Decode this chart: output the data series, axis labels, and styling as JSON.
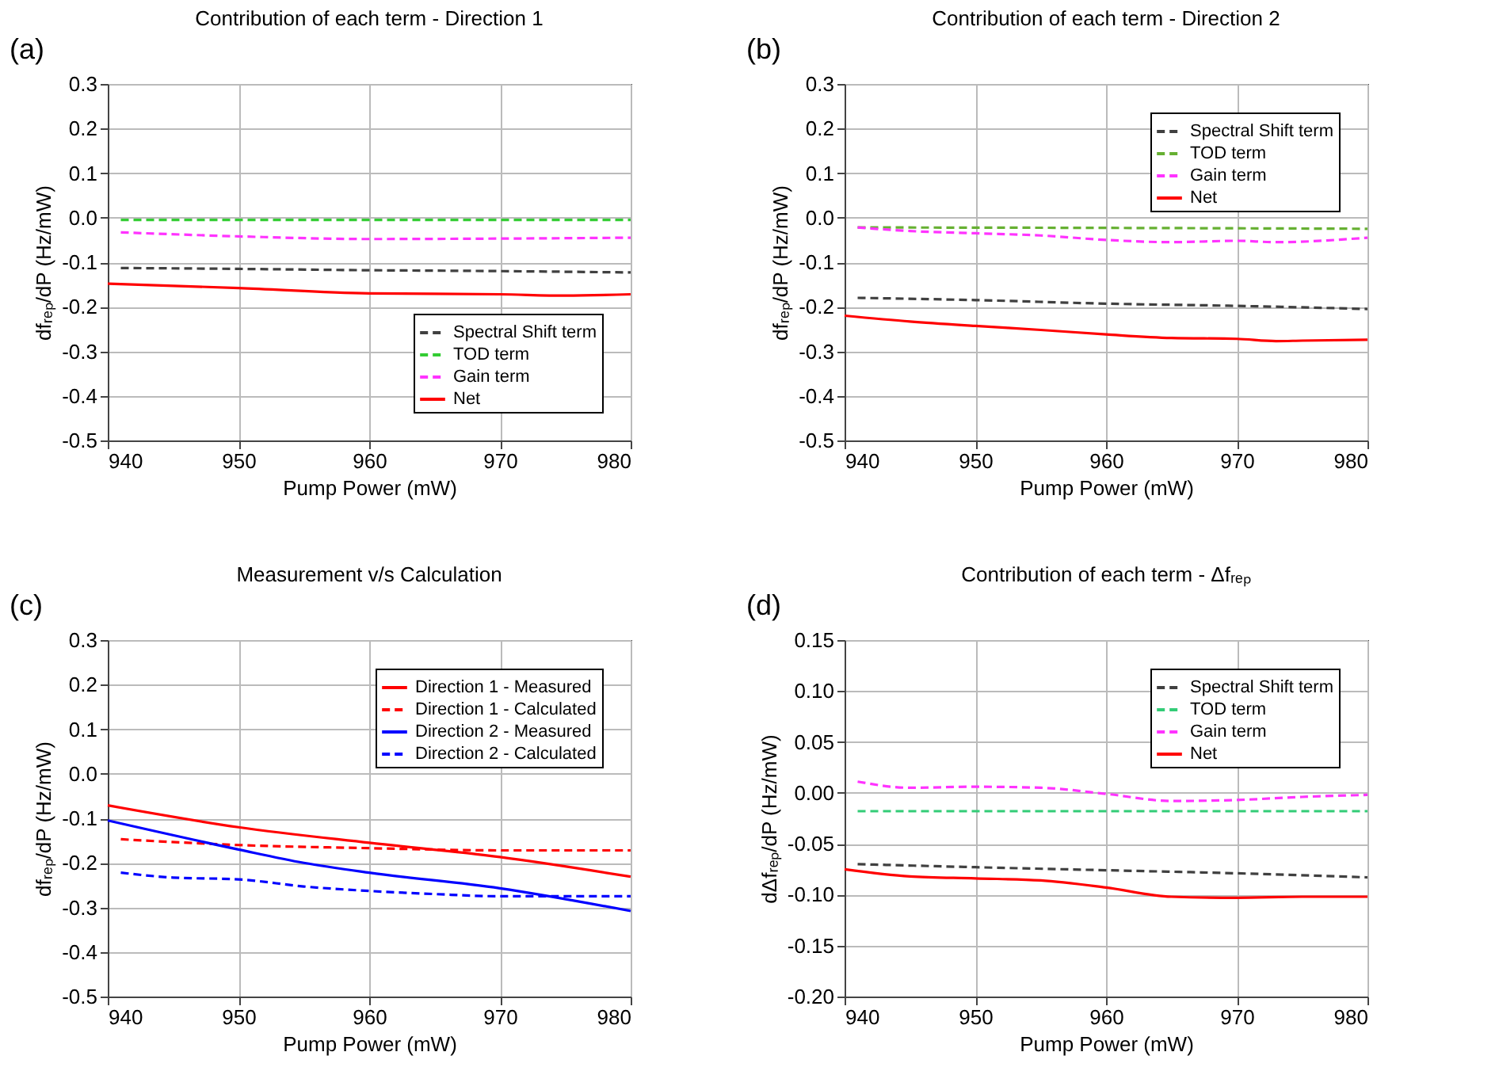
{
  "chart_data": [
    {
      "type": "line",
      "title": "Contribution of each term - Direction 1",
      "xlabel": "Pump Power (mW)",
      "ylabel": "dfᵣₑₚ/dP (Hz/mW)",
      "annotations": [
        "(a)"
      ],
      "xlim": [
        940,
        980
      ],
      "xticks": [
        940,
        950,
        960,
        970,
        980
      ],
      "ylim": [
        -0.5,
        0.3
      ],
      "yticks": [
        {
          "value": -0.5,
          "label": "-0.5"
        },
        {
          "value": -0.4,
          "label": "-0.4"
        },
        {
          "value": -0.3,
          "label": "-0.3"
        },
        {
          "value": -0.2,
          "label": "-0.2"
        },
        {
          "value": -0.1,
          "label": "-0.1"
        },
        {
          "value": 0,
          "label": "0.0"
        },
        {
          "value": 0.1,
          "label": "0.1"
        },
        {
          "value": 0.2,
          "label": "0.2"
        },
        {
          "value": 0.3,
          "label": "0.3"
        }
      ],
      "grid": true,
      "legend": "bottom right",
      "series": [
        {
          "name": "Spectral Shift term",
          "color": "#404040",
          "line_style": "dashed",
          "x": [
            941,
            950,
            960,
            970,
            980
          ],
          "values": [
            -0.113,
            -0.115,
            -0.118,
            -0.12,
            -0.123
          ]
        },
        {
          "name": "TOD term",
          "color": "#33cc33",
          "line_style": "dashed",
          "x": [
            941,
            950,
            960,
            970,
            980
          ],
          "values": [
            -0.005,
            -0.005,
            -0.005,
            -0.005,
            -0.005
          ]
        },
        {
          "name": "Gain term",
          "color": "#ff33ff",
          "line_style": "dashed",
          "x": [
            941,
            950,
            960,
            970,
            980
          ],
          "values": [
            -0.033,
            -0.042,
            -0.048,
            -0.047,
            -0.045
          ]
        },
        {
          "name": "Net",
          "color": "#ff0000",
          "line_style": "solid",
          "x": [
            940,
            950,
            960,
            970,
            975,
            980
          ],
          "values": [
            -0.148,
            -0.158,
            -0.17,
            -0.172,
            -0.175,
            -0.172
          ]
        }
      ]
    },
    {
      "type": "line",
      "title": "Contribution of each term - Direction 2",
      "xlabel": "Pump Power (mW)",
      "ylabel": "dfᵣₑₚ/dP (Hz/mW)",
      "annotations": [
        "(b)"
      ],
      "xlim": [
        940,
        980
      ],
      "xticks": [
        940,
        950,
        960,
        970,
        980
      ],
      "ylim": [
        -0.5,
        0.3
      ],
      "yticks": [
        {
          "value": -0.5,
          "label": "-0.5"
        },
        {
          "value": -0.4,
          "label": "-0.4"
        },
        {
          "value": -0.3,
          "label": "-0.3"
        },
        {
          "value": -0.2,
          "label": "-0.2"
        },
        {
          "value": -0.1,
          "label": "-0.1"
        },
        {
          "value": 0,
          "label": "0.0"
        },
        {
          "value": 0.1,
          "label": "0.1"
        },
        {
          "value": 0.2,
          "label": "0.2"
        },
        {
          "value": 0.3,
          "label": "0.3"
        }
      ],
      "grid": true,
      "legend": "top right",
      "series": [
        {
          "name": "Spectral Shift term",
          "color": "#404040",
          "line_style": "dashed",
          "x": [
            941,
            950,
            960,
            970,
            980
          ],
          "values": [
            -0.18,
            -0.185,
            -0.193,
            -0.198,
            -0.205
          ]
        },
        {
          "name": "TOD term",
          "color": "#66b032",
          "line_style": "dashed",
          "x": [
            941,
            960,
            980
          ],
          "values": [
            -0.022,
            -0.023,
            -0.025
          ]
        },
        {
          "name": "Gain term",
          "color": "#ff33ff",
          "line_style": "dashed",
          "x": [
            941,
            945,
            950,
            955,
            960,
            965,
            970,
            973,
            980
          ],
          "values": [
            -0.022,
            -0.03,
            -0.035,
            -0.04,
            -0.05,
            -0.055,
            -0.052,
            -0.055,
            -0.045
          ]
        },
        {
          "name": "Net",
          "color": "#ff0000",
          "line_style": "solid",
          "x": [
            940,
            945,
            950,
            955,
            960,
            965,
            970,
            973,
            975,
            980
          ],
          "values": [
            -0.22,
            -0.233,
            -0.243,
            -0.252,
            -0.262,
            -0.27,
            -0.272,
            -0.277,
            -0.276,
            -0.274
          ]
        }
      ]
    },
    {
      "type": "line",
      "title": "Measurement v/s Calculation",
      "xlabel": "Pump Power (mW)",
      "ylabel": "dfᵣₑₚ/dP (Hz/mW)",
      "annotations": [
        "(c)"
      ],
      "xlim": [
        940,
        980
      ],
      "xticks": [
        940,
        950,
        960,
        970,
        980
      ],
      "ylim": [
        -0.5,
        0.3
      ],
      "yticks": [
        {
          "value": -0.5,
          "label": "-0.5"
        },
        {
          "value": -0.4,
          "label": "-0.4"
        },
        {
          "value": -0.3,
          "label": "-0.3"
        },
        {
          "value": -0.2,
          "label": "-0.2"
        },
        {
          "value": -0.1,
          "label": "-0.1"
        },
        {
          "value": 0,
          "label": "0.0"
        },
        {
          "value": 0.1,
          "label": "0.1"
        },
        {
          "value": 0.2,
          "label": "0.2"
        },
        {
          "value": 0.3,
          "label": "0.3"
        }
      ],
      "grid": true,
      "legend": "top right",
      "series": [
        {
          "name": "Direction 1 - Measured",
          "color": "#ff0000",
          "line_style": "solid",
          "x": [
            940,
            950,
            960,
            970,
            980
          ],
          "values": [
            -0.071,
            -0.12,
            -0.155,
            -0.187,
            -0.231
          ]
        },
        {
          "name": "Direction 1 - Calculated",
          "color": "#ff0000",
          "line_style": "dashed",
          "x": [
            941,
            950,
            960,
            970,
            980
          ],
          "values": [
            -0.147,
            -0.16,
            -0.167,
            -0.172,
            -0.172
          ]
        },
        {
          "name": "Direction 2 - Measured",
          "color": "#0000ff",
          "line_style": "solid",
          "x": [
            940,
            950,
            955,
            960,
            970,
            980
          ],
          "values": [
            -0.105,
            -0.17,
            -0.2,
            -0.222,
            -0.257,
            -0.308
          ]
        },
        {
          "name": "Direction 2 - Calculated",
          "color": "#0000ff",
          "line_style": "dashed",
          "x": [
            941,
            945,
            950,
            955,
            960,
            965,
            970,
            980
          ],
          "values": [
            -0.222,
            -0.233,
            -0.237,
            -0.253,
            -0.263,
            -0.27,
            -0.275,
            -0.275
          ]
        }
      ]
    },
    {
      "type": "line",
      "title": "Contribution of each term - Δfᵣₑₚ",
      "xlabel": "Pump Power (mW)",
      "ylabel": "dΔfᵣₑₚ/dP (Hz/mW)",
      "annotations": [
        "(d)"
      ],
      "xlim": [
        940,
        980
      ],
      "xticks": [
        940,
        950,
        960,
        970,
        980
      ],
      "ylim": [
        -0.2,
        0.15
      ],
      "yticks": [
        {
          "value": -0.2,
          "label": "-0.20"
        },
        {
          "value": -0.15,
          "label": "-0.15"
        },
        {
          "value": -0.1,
          "label": "-0.10"
        },
        {
          "value": -0.05,
          "label": "-0.05"
        },
        {
          "value": 0,
          "label": "0.00"
        },
        {
          "value": 0.05,
          "label": "0.05"
        },
        {
          "value": 0.1,
          "label": "0.10"
        },
        {
          "value": 0.15,
          "label": "0.15"
        }
      ],
      "grid": true,
      "legend": "top right",
      "series": [
        {
          "name": "Spectral Shift term",
          "color": "#404040",
          "line_style": "dashed",
          "x": [
            941,
            950,
            960,
            970,
            980
          ],
          "values": [
            -0.07,
            -0.073,
            -0.076,
            -0.079,
            -0.083
          ]
        },
        {
          "name": "TOD term",
          "color": "#33cc77",
          "line_style": "dashed",
          "x": [
            941,
            960,
            980
          ],
          "values": [
            -0.018,
            -0.018,
            -0.018
          ]
        },
        {
          "name": "Gain term",
          "color": "#ff33ff",
          "line_style": "dashed",
          "x": [
            941,
            945,
            950,
            955,
            960,
            965,
            970,
            975,
            980
          ],
          "values": [
            0.011,
            0.005,
            0.006,
            0.005,
            -0.001,
            -0.008,
            -0.007,
            -0.004,
            -0.002
          ]
        },
        {
          "name": "Net",
          "color": "#ff0000",
          "line_style": "solid",
          "x": [
            940,
            945,
            950,
            955,
            960,
            965,
            970,
            975,
            980
          ],
          "values": [
            -0.075,
            -0.082,
            -0.084,
            -0.086,
            -0.093,
            -0.102,
            -0.103,
            -0.102,
            -0.102
          ]
        }
      ]
    }
  ]
}
